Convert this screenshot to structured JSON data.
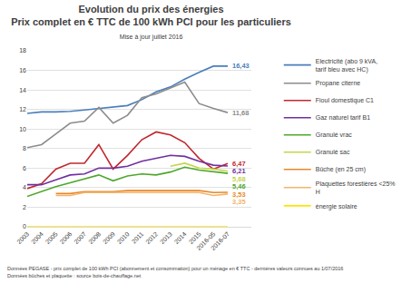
{
  "chart_data": {
    "type": "line",
    "title": "Evolution du prix des énergies",
    "subtitle": "Prix complet en € TTC de 100 kWh PCI pour les particuliers",
    "annotations": [
      "Mise à jour juillet 2016"
    ],
    "notes": [
      "Données PEGASE - prix complet de 100 kWh PCI (abonnement et consommation) pour un ménage en € TTC - dernières valeurs connues au 1/07/2016",
      "Données bûches et plaquette : source bois-de-chauffage.net"
    ],
    "categories": [
      "2003",
      "2004",
      "2005",
      "2006",
      "2007",
      "2008",
      "2009",
      "2010",
      "2011",
      "2012",
      "2013",
      "2014",
      "2015",
      "2016-05",
      "2016-07"
    ],
    "series": [
      {
        "name": "Electricité (abo 9 kVA, tarif bleu avec HC)",
        "color": "#4a7ebb",
        "values": [
          11.6,
          11.75,
          11.75,
          11.8,
          11.95,
          12.1,
          12.2,
          12.4,
          13.0,
          13.8,
          14.3,
          15.1,
          15.8,
          16.43,
          16.43
        ],
        "value_labels": [
          null,
          null,
          null,
          null,
          null,
          null,
          null,
          null,
          null,
          null,
          null,
          null,
          null,
          null,
          "16,43"
        ]
      },
      {
        "name": "Propane citerne",
        "color": "#8c8c8c",
        "values": [
          8.1,
          8.4,
          9.5,
          10.6,
          10.8,
          12.2,
          10.6,
          11.4,
          13.2,
          13.6,
          14.2,
          14.8,
          12.6,
          12.1,
          11.68
        ],
        "value_labels": [
          null,
          null,
          null,
          null,
          null,
          null,
          null,
          null,
          null,
          null,
          null,
          null,
          null,
          null,
          "11,68"
        ]
      },
      {
        "name": "Fioul domestique C1",
        "color": "#c0282e",
        "values": [
          3.9,
          4.4,
          5.9,
          6.5,
          6.5,
          8.4,
          5.9,
          7.3,
          8.9,
          9.7,
          9.4,
          8.6,
          7.0,
          5.9,
          6.47
        ],
        "value_labels": [
          null,
          null,
          null,
          null,
          null,
          null,
          null,
          null,
          null,
          null,
          null,
          null,
          null,
          null,
          "6,47"
        ]
      },
      {
        "name": "Gaz naturel tarif B1",
        "color": "#7030a0",
        "values": [
          4.3,
          4.3,
          4.8,
          5.3,
          5.4,
          6.0,
          6.0,
          6.2,
          6.7,
          7.0,
          7.3,
          7.2,
          6.7,
          6.3,
          6.21
        ],
        "value_labels": [
          null,
          null,
          null,
          null,
          null,
          null,
          null,
          null,
          null,
          null,
          null,
          null,
          null,
          null,
          "6,21"
        ]
      },
      {
        "name": "Granulé vrac",
        "color": "#4ea72e",
        "values": [
          3.1,
          3.6,
          4.1,
          4.5,
          4.9,
          5.3,
          4.7,
          5.2,
          5.4,
          5.3,
          5.6,
          6.1,
          5.8,
          5.6,
          5.46
        ],
        "value_labels": [
          null,
          null,
          null,
          null,
          null,
          null,
          null,
          null,
          null,
          null,
          null,
          null,
          null,
          null,
          "5,46"
        ]
      },
      {
        "name": "Granulé sac",
        "color": "#c3d64a",
        "values": [
          null,
          null,
          null,
          null,
          null,
          null,
          null,
          null,
          null,
          null,
          6.2,
          6.5,
          6.0,
          5.9,
          5.68
        ],
        "value_labels": [
          null,
          null,
          null,
          null,
          null,
          null,
          null,
          null,
          null,
          null,
          null,
          null,
          null,
          null,
          "5,68"
        ]
      },
      {
        "name": "Bûche (en 25 cm)",
        "color": "#e8892b",
        "values": [
          null,
          null,
          3.4,
          3.4,
          3.6,
          3.6,
          3.6,
          3.7,
          3.7,
          3.7,
          3.7,
          3.7,
          3.7,
          3.5,
          3.53
        ],
        "value_labels": [
          null,
          null,
          null,
          null,
          null,
          null,
          null,
          null,
          null,
          null,
          null,
          null,
          null,
          null,
          "3,53"
        ]
      },
      {
        "name": "Plaquettes forestières <25% H",
        "color": "#f3b56b",
        "values": [
          null,
          null,
          3.2,
          3.2,
          3.5,
          3.5,
          3.5,
          3.5,
          3.5,
          3.5,
          3.5,
          3.5,
          3.5,
          3.2,
          3.35
        ],
        "value_labels": [
          null,
          null,
          null,
          null,
          null,
          null,
          null,
          null,
          null,
          null,
          null,
          null,
          null,
          null,
          "3,35"
        ]
      },
      {
        "name": "énergie solaire",
        "color": "#ffe600",
        "values": [
          0,
          0,
          0,
          0,
          0,
          0,
          0,
          0,
          0,
          0,
          0,
          0,
          0,
          0,
          0
        ],
        "value_labels": [
          null,
          null,
          null,
          null,
          null,
          null,
          null,
          null,
          null,
          null,
          null,
          null,
          null,
          null,
          null
        ]
      }
    ],
    "ylim": [
      0,
      18
    ],
    "yticks": [
      0,
      2,
      4,
      6,
      8,
      10,
      12,
      14,
      16,
      18
    ],
    "grid": true,
    "legend": "right"
  }
}
